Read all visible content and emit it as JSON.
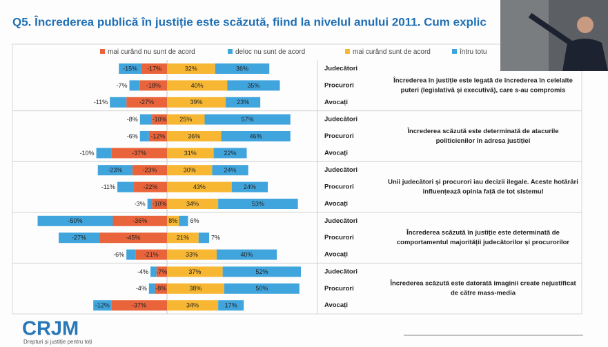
{
  "chart_data": {
    "type": "diverging_bar",
    "title": "Q5. Încrederea publică în justiție este scăzută, fiind la nivelul anului 2011. Cum explic",
    "categories": [
      "Judecători",
      "Procurori",
      "Avocați",
      "Judecători",
      "Procurori",
      "Avocați",
      "Judecători",
      "Procurori",
      "Avocați",
      "Judecători",
      "Procurori",
      "Avocați",
      "Judecători",
      "Procurori",
      "Avocați"
    ],
    "series": [
      {
        "name": "mai curând nu sunt de acord",
        "color": "#e9643b",
        "values": [
          -17,
          -18,
          -27,
          -10,
          -12,
          -37,
          -23,
          -22,
          -10,
          -36,
          -45,
          -21,
          -7,
          -8,
          -37
        ],
        "value_labels": [
          "-17%",
          "-18%",
          "-27%",
          "-10%",
          "-12%",
          "-37%",
          "-23%",
          "-22%",
          "-10%",
          "-36%",
          "-45%",
          "-21%",
          "-7%",
          "-8%",
          "-37%"
        ]
      },
      {
        "name": "deloc nu sunt de acord",
        "color": "#41a5dd",
        "values": [
          -15,
          -7,
          -11,
          -8,
          -6,
          -10,
          -23,
          -11,
          -3,
          -50,
          -27,
          -6,
          -4,
          -4,
          -12
        ],
        "value_labels": [
          "-15%",
          "-7%",
          "-11%",
          "-8%",
          "-6%",
          "-10%",
          "-23%",
          "-11%",
          "-3%",
          "-50%",
          "-27%",
          "-6%",
          "-4%",
          "-4%",
          "-12%"
        ]
      },
      {
        "name": "mai curând sunt de acord",
        "color": "#f7b733",
        "values": [
          32,
          40,
          39,
          25,
          36,
          31,
          30,
          43,
          34,
          8,
          21,
          33,
          37,
          38,
          34
        ],
        "value_labels": [
          "32%",
          "40%",
          "39%",
          "25%",
          "36%",
          "31%",
          "30%",
          "43%",
          "34%",
          "8%",
          "21%",
          "33%",
          "37%",
          "38%",
          "34%"
        ]
      },
      {
        "name": "întru totu",
        "color": "#41a5dd",
        "values": [
          36,
          35,
          23,
          57,
          46,
          22,
          24,
          24,
          53,
          6,
          7,
          40,
          52,
          50,
          17
        ],
        "value_labels": [
          "36%",
          "35%",
          "23%",
          "57%",
          "46%",
          "22%",
          "24%",
          "24%",
          "53%",
          "6%",
          "7%",
          "40%",
          "52%",
          "50%",
          "17%"
        ]
      }
    ],
    "statements": [
      [
        "Încrederea în justiție este legată de încrederea în celelalte",
        "puteri (legislativă și executivă), care s-au compromis"
      ],
      [
        "Încrederea scăzută este determinată de atacurile",
        "politicienilor în adresa justiției"
      ],
      [
        "Unii judecători și procurori iau decizii ilegale. Aceste hotărâri",
        "influențează opinia față de tot sistemul"
      ],
      [
        "Încrederea scăzută în justiție este determinată de",
        "comportamentul majorității judecătorilor și procurorilor"
      ],
      [
        "Încrederea scăzută este datorată imaginii create nejustificat",
        "de către mass-media"
      ]
    ]
  },
  "logo": {
    "text": "CRJM",
    "tagline": "Drepturi și justiție pentru toți"
  }
}
